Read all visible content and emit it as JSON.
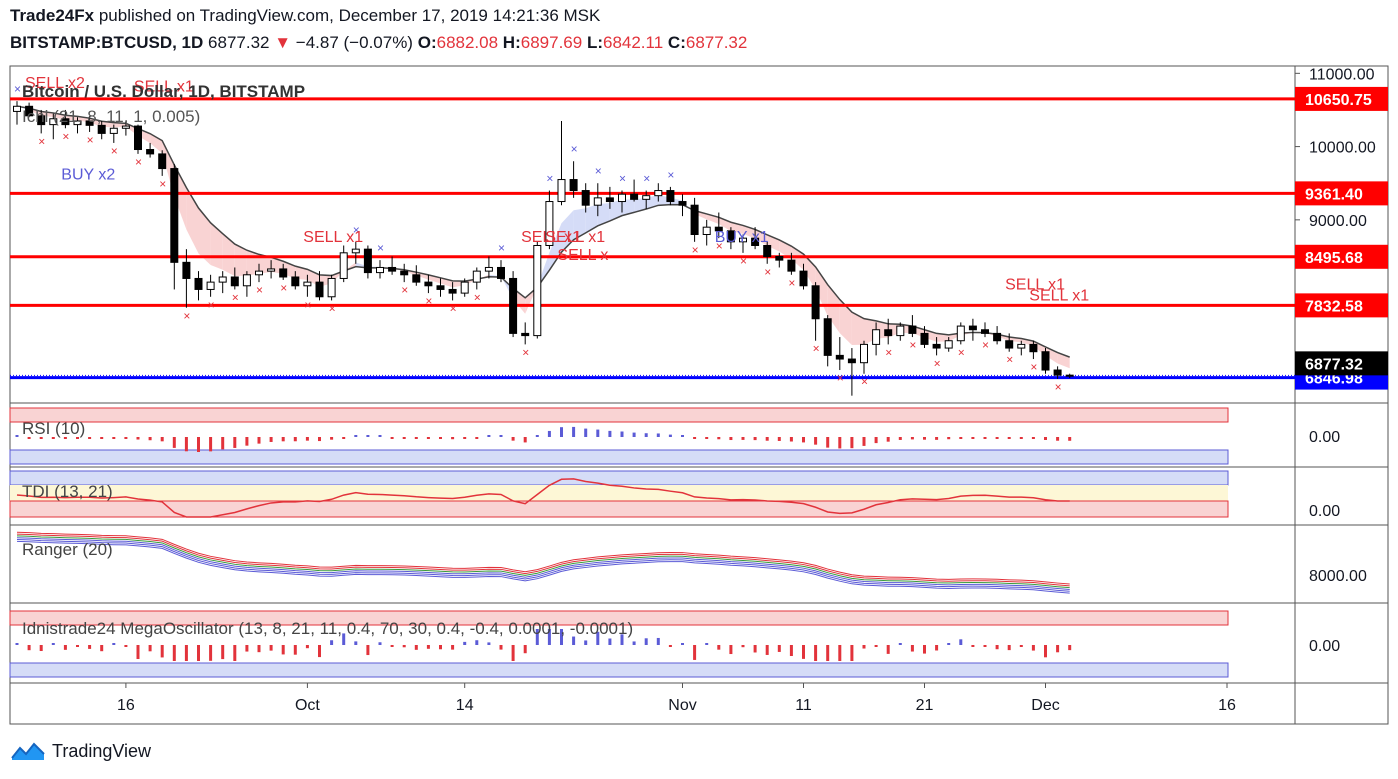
{
  "header": {
    "publisher": "Trade24Fx",
    "published_text": "published on TradingView.com, December 17, 2019 14:21:36 MSK",
    "symbol": "BITSTAMP:BTCUSD, 1D",
    "last": "6877.32",
    "change": "−4.87 (−0.07%)",
    "o_label": "O:",
    "o": "6882.08",
    "h_label": "H:",
    "h": "6897.69",
    "l_label": "L:",
    "l": "6842.11",
    "c_label": "C:",
    "c": "6877.32"
  },
  "main": {
    "title": "Bitcoin / U.S. Dollar, 1D, BITSTAMP",
    "indicator": "Ichi (21, 8, 11, 1, 0.005)",
    "price_ticks": [
      "11000.00",
      "10000.00",
      "9000.00"
    ],
    "levels": [
      {
        "value": 10650.75,
        "label": "10650.75",
        "color": "#ff0000"
      },
      {
        "value": 9361.4,
        "label": "9361.40",
        "color": "#ff0000"
      },
      {
        "value": 8495.68,
        "label": "8495.68",
        "color": "#ff0000"
      },
      {
        "value": 7832.58,
        "label": "7832.58",
        "color": "#ff0000"
      },
      {
        "value": 6846.98,
        "label": "6846.98",
        "color": "#0000ff"
      }
    ],
    "last_price_label": "6877.32",
    "signals": [
      {
        "text": "SELL x2",
        "x": 0,
        "y": 10800
      },
      {
        "text": "SELL x1",
        "x": 9,
        "y": 10750
      },
      {
        "text": "BUY x2",
        "x": 3,
        "y": 9550
      },
      {
        "text": "SELL x1",
        "x": 23,
        "y": 8700
      },
      {
        "text": "SELL x1",
        "x": 41,
        "y": 8700
      },
      {
        "text": "SELL x1",
        "x": 43,
        "y": 8700
      },
      {
        "text": "SELL x",
        "x": 44,
        "y": 8450
      },
      {
        "text": "BUY x1",
        "x": 57,
        "y": 8700
      },
      {
        "text": "SELL x1",
        "x": 81,
        "y": 8050
      },
      {
        "text": "SELL x1",
        "x": 83,
        "y": 7900
      }
    ]
  },
  "rsi": {
    "title": "RSI (10)",
    "tick": "0.00"
  },
  "tdi": {
    "title": "TDI (13, 21)",
    "tick": "0.00"
  },
  "ranger": {
    "title": "Ranger (20)",
    "tick": "8000.00"
  },
  "mega": {
    "title": "Idnistrade24 MegaOscillator (13, 8, 21, 11, 0.4, 70, 30, 0.4, -0.4, 0.0001, -0.0001)",
    "tick": "0.00"
  },
  "x_axis": {
    "labels": [
      {
        "text": "16",
        "idx": 9
      },
      {
        "text": "Oct",
        "idx": 24
      },
      {
        "text": "14",
        "idx": 37
      },
      {
        "text": "Nov",
        "idx": 55
      },
      {
        "text": "11",
        "idx": 65
      },
      {
        "text": "21",
        "idx": 75
      },
      {
        "text": "Dec",
        "idx": 85
      },
      {
        "text": "16",
        "idx": 100
      }
    ]
  },
  "colors": {
    "up": "#ffffff",
    "down": "#000000",
    "sell": "#e2333b",
    "buy": "#5b5bd6",
    "level_red": "#ff0000",
    "level_blue": "#0000ff"
  },
  "footer": {
    "brand": "TradingView"
  },
  "chart_data": {
    "type": "candlestick",
    "title": "Bitcoin / U.S. Dollar, 1D, BITSTAMP",
    "x": "daily, Sep 7 2019 – Dec 17 2019",
    "ylim": [
      6500,
      11100
    ],
    "ohlc": [
      [
        10480,
        10620,
        10300,
        10550
      ],
      [
        10550,
        10600,
        10400,
        10420
      ],
      [
        10420,
        10500,
        10180,
        10300
      ],
      [
        10300,
        10450,
        10100,
        10380
      ],
      [
        10380,
        10500,
        10250,
        10300
      ],
      [
        10300,
        10400,
        10180,
        10350
      ],
      [
        10350,
        10420,
        10200,
        10290
      ],
      [
        10290,
        10350,
        10100,
        10180
      ],
      [
        10180,
        10300,
        10050,
        10250
      ],
      [
        10250,
        10350,
        10150,
        10280
      ],
      [
        10280,
        10300,
        9900,
        9960
      ],
      [
        9960,
        10050,
        9850,
        9900
      ],
      [
        9900,
        9950,
        9600,
        9700
      ],
      [
        9700,
        9760,
        8050,
        8420
      ],
      [
        8420,
        8600,
        7800,
        8200
      ],
      [
        8200,
        8300,
        7900,
        8050
      ],
      [
        8050,
        8250,
        7950,
        8150
      ],
      [
        8150,
        8300,
        8000,
        8220
      ],
      [
        8220,
        8350,
        8050,
        8100
      ],
      [
        8100,
        8300,
        7950,
        8250
      ],
      [
        8250,
        8400,
        8150,
        8300
      ],
      [
        8300,
        8450,
        8200,
        8330
      ],
      [
        8330,
        8400,
        8180,
        8220
      ],
      [
        8220,
        8300,
        8050,
        8100
      ],
      [
        8100,
        8250,
        7950,
        8150
      ],
      [
        8150,
        8300,
        7900,
        7950
      ],
      [
        7950,
        8250,
        7900,
        8200
      ],
      [
        8200,
        8650,
        8150,
        8550
      ],
      [
        8550,
        8700,
        8400,
        8600
      ],
      [
        8600,
        8650,
        8200,
        8280
      ],
      [
        8280,
        8450,
        8200,
        8350
      ],
      [
        8350,
        8500,
        8250,
        8300
      ],
      [
        8300,
        8400,
        8150,
        8250
      ],
      [
        8250,
        8380,
        8100,
        8150
      ],
      [
        8150,
        8250,
        8000,
        8100
      ],
      [
        8100,
        8200,
        7950,
        8050
      ],
      [
        8050,
        8150,
        7900,
        8000
      ],
      [
        8000,
        8200,
        7950,
        8150
      ],
      [
        8150,
        8350,
        8050,
        8300
      ],
      [
        8300,
        8500,
        8200,
        8350
      ],
      [
        8350,
        8450,
        8150,
        8200
      ],
      [
        8200,
        8300,
        7400,
        7450
      ],
      [
        7450,
        7600,
        7300,
        7420
      ],
      [
        7420,
        8700,
        7380,
        8650
      ],
      [
        8650,
        9400,
        8600,
        9250
      ],
      [
        9250,
        10350,
        9200,
        9550
      ],
      [
        9550,
        9800,
        9300,
        9400
      ],
      [
        9400,
        9500,
        9100,
        9200
      ],
      [
        9200,
        9500,
        9050,
        9300
      ],
      [
        9300,
        9450,
        9150,
        9250
      ],
      [
        9250,
        9400,
        9100,
        9350
      ],
      [
        9350,
        9550,
        9250,
        9280
      ],
      [
        9280,
        9400,
        9150,
        9330
      ],
      [
        9330,
        9500,
        9250,
        9400
      ],
      [
        9400,
        9450,
        9200,
        9250
      ],
      [
        9250,
        9350,
        9050,
        9200
      ],
      [
        9200,
        9300,
        8700,
        8800
      ],
      [
        8800,
        9000,
        8650,
        8900
      ],
      [
        8900,
        9100,
        8750,
        8850
      ],
      [
        8850,
        8900,
        8600,
        8700
      ],
      [
        8700,
        8800,
        8550,
        8750
      ],
      [
        8750,
        8900,
        8600,
        8650
      ],
      [
        8650,
        8700,
        8400,
        8500
      ],
      [
        8500,
        8550,
        8350,
        8450
      ],
      [
        8450,
        8550,
        8250,
        8300
      ],
      [
        8300,
        8400,
        8050,
        8100
      ],
      [
        8100,
        8150,
        7350,
        7650
      ],
      [
        7650,
        7700,
        7000,
        7150
      ],
      [
        7150,
        7400,
        6950,
        7100
      ],
      [
        7100,
        7250,
        6600,
        7050
      ],
      [
        7050,
        7350,
        6900,
        7300
      ],
      [
        7300,
        7600,
        7150,
        7500
      ],
      [
        7500,
        7650,
        7300,
        7420
      ],
      [
        7420,
        7600,
        7350,
        7550
      ],
      [
        7550,
        7700,
        7400,
        7450
      ],
      [
        7450,
        7550,
        7250,
        7300
      ],
      [
        7300,
        7400,
        7150,
        7250
      ],
      [
        7250,
        7400,
        7200,
        7350
      ],
      [
        7350,
        7600,
        7300,
        7550
      ],
      [
        7550,
        7650,
        7350,
        7500
      ],
      [
        7500,
        7600,
        7400,
        7450
      ],
      [
        7450,
        7550,
        7300,
        7350
      ],
      [
        7350,
        7450,
        7200,
        7250
      ],
      [
        7250,
        7350,
        7150,
        7300
      ],
      [
        7300,
        7350,
        7100,
        7200
      ],
      [
        7200,
        7250,
        6900,
        6950
      ],
      [
        6950,
        7000,
        6830,
        6880
      ],
      [
        6880,
        6900,
        6840,
        6877
      ]
    ]
  }
}
